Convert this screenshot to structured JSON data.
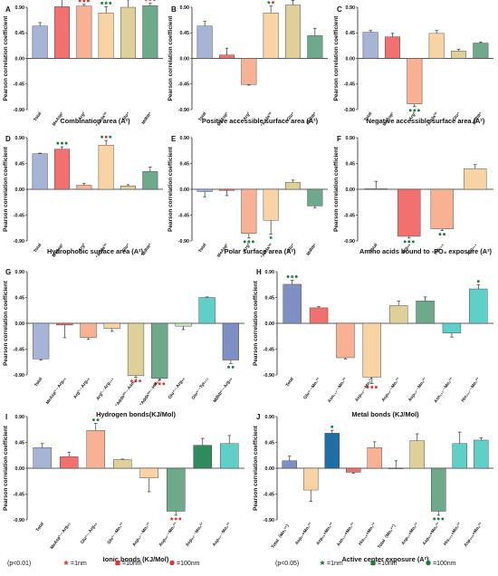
{
  "colors": {
    "blue": "#a6b4d6",
    "red": "#f2706e",
    "salmon": "#f9b193",
    "peach": "#f8d3a3",
    "olive": "#dfd09a",
    "green": "#6fa98c",
    "lightgreen": "#c6e3c5",
    "teal": "#5fd0c7",
    "gray": "#a7acb8",
    "navy": "#7e8fc4",
    "darkblue": "#1f6ea6",
    "darkgreen": "#2f8a5c",
    "sig_red": "#e8312a",
    "sig_green": "#1f7a3c"
  },
  "legend": {
    "p1": "(p<0.01)",
    "p2": "(p<0.05)",
    "items": [
      {
        "shape": "star",
        "color": "sig_red",
        "label": "=1nm"
      },
      {
        "shape": "square",
        "color": "sig_red",
        "label": "=10nm"
      },
      {
        "shape": "circle",
        "color": "sig_red",
        "label": "=100nm"
      },
      {
        "shape": "star",
        "color": "sig_green",
        "label": "=1nm"
      },
      {
        "shape": "square",
        "color": "sig_green",
        "label": "=10nm"
      },
      {
        "shape": "circle",
        "color": "sig_green",
        "label": "=100nm"
      }
    ]
  },
  "chart_data": [
    {
      "panel": "A",
      "type": "bar",
      "ylabel": "Pearson correlation coefficient",
      "xlabel": "Combination area (A²)",
      "ylim": [
        -0.9,
        0.9
      ],
      "yticks": [
        "0.90",
        "0.45",
        "0.00",
        "-0.45",
        "-0.90"
      ],
      "categories": [
        "Total",
        "MeAsp¹",
        "Arg²",
        "⁺Adda³ᵐ",
        "Glu⁴",
        "Mdhb⁵"
      ],
      "values": [
        0.57,
        0.91,
        0.92,
        0.8,
        0.9,
        0.93
      ],
      "errors": [
        0.06,
        0.13,
        0.03,
        0.11,
        0.13,
        0.04
      ],
      "colors": [
        "blue",
        "red",
        "salmon",
        "peach",
        "olive",
        "green"
      ],
      "marks": [
        [],
        [
          "star-red",
          "circle-red",
          "circle-red"
        ],
        [
          "circle-red",
          "circle-red",
          "circle-red"
        ],
        [
          "circle-green",
          "star-green",
          "circle-green"
        ],
        [
          "circle-red",
          "circle-red",
          "circle-red"
        ],
        [
          "circle-red",
          "circle-red",
          "circle-red"
        ]
      ]
    },
    {
      "panel": "B",
      "type": "bar",
      "ylabel": "Pearson correlation coefficient",
      "xlabel": "Positive accessible surface area (A²)",
      "ylim": [
        -0.9,
        0.9
      ],
      "yticks": [
        "0.90",
        "0.45",
        "0.00",
        "-0.45",
        "-0.90"
      ],
      "categories": [
        "Total",
        "MeAsp¹",
        "Arg²",
        "⁺Adda³ᵐ",
        "Glu⁴",
        "Mdhb⁵"
      ],
      "values": [
        0.57,
        0.06,
        -0.46,
        0.8,
        0.94,
        0.4
      ],
      "errors": [
        0.08,
        0.12,
        0.01,
        0.12,
        0.08,
        0.13
      ],
      "colors": [
        "blue",
        "red",
        "salmon",
        "peach",
        "olive",
        "green"
      ],
      "marks": [
        [],
        [],
        [],
        [
          "star-green",
          "circle-red"
        ],
        [
          "circle-red",
          "circle-red",
          "circle-red"
        ],
        []
      ]
    },
    {
      "panel": "C",
      "type": "bar",
      "ylabel": "Pearson correlation coefficient",
      "xlabel": "Negative accessible surface area (A²)",
      "ylim": [
        -0.9,
        0.9
      ],
      "yticks": [
        "0.90",
        "0.45",
        "0.00",
        "-0.45",
        "-0.90"
      ],
      "categories": [
        "Total",
        "MeAsp¹",
        "Arg²",
        "⁺Adda³ᵐ",
        "Glu⁴",
        "Mdhb⁵"
      ],
      "values": [
        0.46,
        0.38,
        -0.8,
        0.44,
        0.13,
        0.27
      ],
      "errors": [
        0.03,
        0.06,
        0.05,
        0.05,
        0.03,
        0.02
      ],
      "colors": [
        "blue",
        "red",
        "salmon",
        "peach",
        "olive",
        "green"
      ],
      "marks": [
        [],
        [],
        [
          "circle-green",
          "circle-green",
          "circle-green"
        ],
        [],
        [],
        []
      ]
    },
    {
      "panel": "D",
      "type": "bar",
      "ylabel": "Pearson correlation coefficient",
      "xlabel": "Hydrophobic surface area (A²)",
      "ylim": [
        -0.9,
        0.9
      ],
      "yticks": [
        "0.90",
        "0.45",
        "0.00",
        "-0.45",
        "-0.90"
      ],
      "categories": [
        "Total",
        "MeAsp¹",
        "Arg²",
        "⁺Adda³ᵐ",
        "Glu⁴",
        "Mdhb⁵"
      ],
      "values": [
        0.62,
        0.7,
        0.07,
        0.77,
        0.06,
        0.31
      ],
      "errors": [
        0.01,
        0.04,
        0.03,
        0.08,
        0.02,
        0.08
      ],
      "colors": [
        "blue",
        "red",
        "salmon",
        "peach",
        "olive",
        "green"
      ],
      "marks": [
        [],
        [
          "circle-green",
          "circle-green",
          "circle-green"
        ],
        [],
        [
          "circle-green",
          "circle-red",
          "circle-green"
        ],
        [],
        []
      ]
    },
    {
      "panel": "E",
      "type": "bar",
      "ylabel": "Pearson correlation coefficient",
      "xlabel": "Polar surface area (A²)",
      "ylim": [
        -0.9,
        0.9
      ],
      "yticks": [
        "0.90",
        "0.45",
        "0.00",
        "-0.45",
        "-0.90"
      ],
      "categories": [
        "Total",
        "MeAsp¹",
        "Arg²",
        "⁺Adda³ᵐ",
        "Glu⁴",
        "Mdhb⁵"
      ],
      "values": [
        -0.04,
        -0.02,
        -0.77,
        -0.54,
        0.12,
        -0.29
      ],
      "errors": [
        0.09,
        0.09,
        0.08,
        0.24,
        0.04,
        0.03
      ],
      "colors": [
        "blue",
        "red",
        "salmon",
        "peach",
        "olive",
        "green"
      ],
      "marks": [
        [],
        [],
        [
          "circle-green",
          "circle-green",
          "circle-green"
        ],
        [
          "star-green"
        ],
        [],
        []
      ]
    },
    {
      "panel": "F",
      "type": "bar",
      "ylabel": "Pearson correlation coefficient",
      "xlabel": "Amino acids bound to -PO₄ exposure (A²)",
      "ylim": [
        -0.9,
        0.9
      ],
      "yticks": [
        "0.90",
        "0.45",
        "0.00",
        "-0.45",
        "-0.90"
      ],
      "categories": [
        "Total",
        "Arg₈₉",
        "His₁₁₈",
        "Arg₂₁₄"
      ],
      "values": [
        0.01,
        -0.82,
        -0.69,
        0.36
      ],
      "errors": [
        0.13,
        0.03,
        0.03,
        0.07
      ],
      "colors": [
        "blue",
        "red",
        "salmon",
        "peach"
      ],
      "marks": [
        [],
        [
          "circle-green",
          "circle-green",
          "circle-green"
        ],
        [
          "circle-green",
          "circle-green"
        ],
        []
      ]
    },
    {
      "panel": "G",
      "type": "bar",
      "ylabel": "Pearson correlation coefficient",
      "xlabel": "Hydrogen bonds(KJ/Mol)",
      "ylim": [
        -0.9,
        0.9
      ],
      "yticks": [
        "0.90",
        "0.45",
        "0.00",
        "-0.45",
        "-0.90"
      ],
      "categories": [
        "Total",
        "MeAsp¹···Arg₈₉",
        "Arg²···Arg₈₉",
        "Arg²···Arg₂₁₄",
        "⁺Adda³ᵐ···Asn₁₁₇",
        "⁺Adda³ᵐ···His₁₁₈",
        "Glu⁴···Arg₈₉",
        "Glu⁴···Tyr₂₇₂",
        "Mdhb⁵···Arg₈₉"
      ],
      "values": [
        -0.62,
        -0.03,
        -0.25,
        -0.09,
        -0.91,
        -0.96,
        -0.05,
        0.45,
        -0.64
      ],
      "errors": [
        0.02,
        0.22,
        0.03,
        0.05,
        0.03,
        0.03,
        0.06,
        0.01,
        0.06
      ],
      "colors": [
        "blue",
        "red",
        "salmon",
        "peach",
        "olive",
        "green",
        "lightgreen",
        "teal",
        "navy"
      ],
      "marks": [
        [],
        [],
        [],
        [],
        [
          "star-red",
          "circle-red",
          "circle-red"
        ],
        [
          "circle-red",
          "circle-red",
          "circle-red"
        ],
        [],
        [],
        [
          "circle-green",
          "circle-green"
        ]
      ]
    },
    {
      "panel": "H",
      "type": "bar",
      "ylabel": "Pearson correlation coefficient",
      "xlabel": "Metal bonds (KJ/Mol)",
      "ylim": [
        -0.9,
        0.9
      ],
      "yticks": [
        "0.90",
        "0.45",
        "0.00",
        "-0.45",
        "-0.90"
      ],
      "categories": [
        "Total",
        "Glu⁴···Mn₁²⁺",
        "Asn₁₁₇···Mn₁²⁺",
        "Asp₈₅···Mn₂²⁺",
        "Asp₈₅···Mn₁²⁺",
        "Asp₅₇···Mn₂²⁺",
        "Asn₁₁₇···Mn₂²⁺",
        "His₂₄₁···Mn₁²⁺"
      ],
      "values": [
        0.68,
        0.27,
        -0.6,
        -0.94,
        0.31,
        0.39,
        -0.17,
        0.6
      ],
      "errors": [
        0.07,
        0.02,
        0.02,
        0.11,
        0.08,
        0.07,
        0.07,
        0.07
      ],
      "colors": [
        "navy",
        "red",
        "salmon",
        "peach",
        "olive",
        "green",
        "teal",
        "teal"
      ],
      "marks": [
        [
          "circle-green",
          "star-green",
          "circle-green"
        ],
        [],
        [],
        [
          "star-red",
          "circle-red",
          "circle-red"
        ],
        [],
        [],
        [],
        [
          "circle-green"
        ]
      ]
    },
    {
      "panel": "I",
      "type": "bar",
      "ylabel": "Pearson correlation coefficient",
      "xlabel": "Ionic bonds (KJ/Mol)",
      "ylim": [
        -0.9,
        0.9
      ],
      "yticks": [
        "0.90",
        "0.45",
        "0.00",
        "-0.45",
        "-0.90"
      ],
      "categories": [
        "Total",
        "MeAsp¹···Arg₈₉",
        "Glu⁴···Arg₈₉",
        "Glu⁴···Mn₁²⁺",
        "Asp₅₇···Mn₁²⁺",
        "Asp₈₅···Mn₁²⁺",
        "Asp₈₅···Mn₂²⁺",
        "Asp₅₇···Mn₂²⁺"
      ],
      "values": [
        0.36,
        0.2,
        0.66,
        0.15,
        -0.17,
        -0.75,
        0.4,
        0.43
      ],
      "errors": [
        0.07,
        0.08,
        0.12,
        0.01,
        0.24,
        0.07,
        0.12,
        0.14
      ],
      "colors": [
        "blue",
        "red",
        "salmon",
        "olive",
        "peach",
        "green",
        "darkgreen",
        "teal"
      ],
      "marks": [
        [],
        [],
        [
          "circle-green",
          "circle-green"
        ],
        [],
        [],
        [
          "star-red",
          "circle-red",
          "circle-red"
        ],
        [],
        []
      ]
    },
    {
      "panel": "J",
      "type": "bar",
      "ylabel": "Pearson correlation coefficient",
      "xlabel": "Active center exposure (A²)",
      "ylim": [
        -0.9,
        0.9
      ],
      "yticks": [
        "0.90",
        "0.45",
        "0.00",
        "-0.45",
        "-0.90"
      ],
      "categories": [
        "Total（Mn₁²⁺）",
        "Asp₅₇+Mn₁²⁺",
        "Asp₈₅+Mn₁²⁺",
        "Asn₁₁₇+Mn₁²⁺",
        "His₁₁₈+Mn₁²⁺",
        "Total（Mn₂²⁺）",
        "Asp₅₇+Mn₂²⁺",
        "Asp₈₅+Mn₂²⁺",
        "His₂₄₁+Mn₂²⁺",
        "Asp₂₅₆+Mn₂²⁺"
      ],
      "values": [
        0.13,
        -0.38,
        0.61,
        -0.07,
        0.36,
        0.0,
        0.48,
        -0.75,
        0.43,
        0.49
      ],
      "errors": [
        0.08,
        0.2,
        0.05,
        0.02,
        0.1,
        0.13,
        0.12,
        0.07,
        0.2,
        0.04
      ],
      "colors": [
        "navy",
        "peach",
        "darkblue",
        "red",
        "salmon",
        "gray",
        "olive",
        "green",
        "teal",
        "teal"
      ],
      "marks": [
        [],
        [],
        [
          "circle-green"
        ],
        [],
        [],
        [],
        [],
        [
          "circle-green",
          "circle-green",
          "circle-green"
        ],
        [],
        []
      ]
    }
  ]
}
